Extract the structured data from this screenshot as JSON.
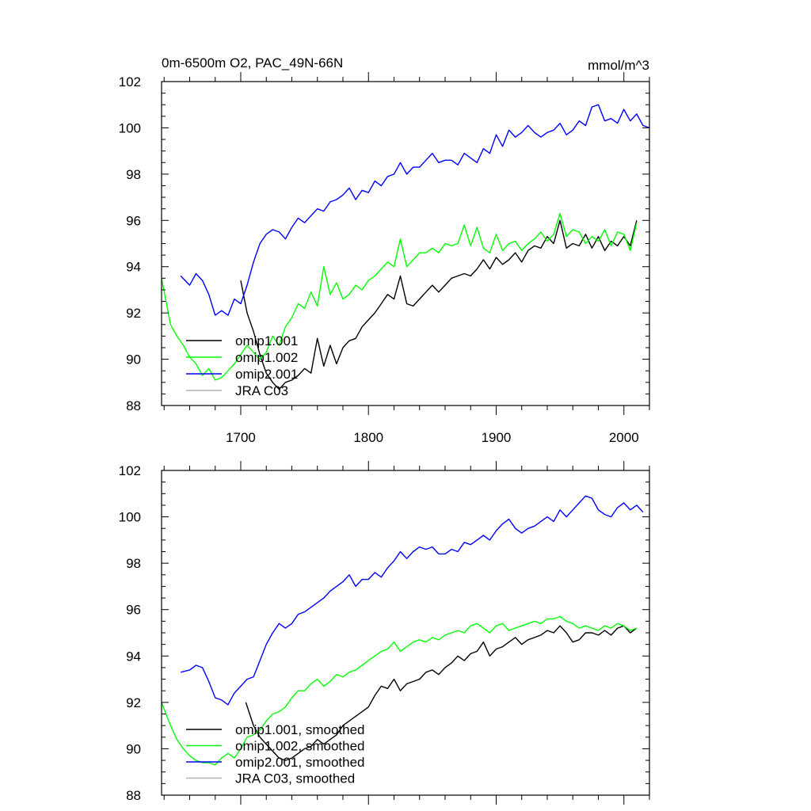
{
  "figure": {
    "title_left": "0m-6500m O2, PAC_49N-66N",
    "title_right": "mmol/m^3"
  },
  "colors": {
    "omip1_001": "#000000",
    "omip1_002": "#00ff00",
    "omip2_001": "#0000ff",
    "jra_c03": "#b3b3b3"
  },
  "chart_data": [
    {
      "type": "line",
      "title": "0m-6500m O2, PAC_49N-66N",
      "units": "mmol/m^3",
      "xlim": [
        1638,
        2020
      ],
      "ylim": [
        88,
        102
      ],
      "xticks": [
        1700,
        1800,
        1900,
        2000
      ],
      "yticks": [
        88,
        90,
        92,
        94,
        96,
        98,
        100,
        102
      ],
      "show_xtick_labels": true,
      "legend_position": "bottom-left",
      "series": [
        {
          "name": "omip1.001",
          "color": "#000000",
          "x": [
            1700,
            1705,
            1710,
            1715,
            1720,
            1725,
            1730,
            1735,
            1740,
            1745,
            1750,
            1755,
            1760,
            1765,
            1770,
            1775,
            1780,
            1785,
            1790,
            1795,
            1800,
            1805,
            1810,
            1815,
            1820,
            1825,
            1830,
            1835,
            1840,
            1845,
            1850,
            1855,
            1860,
            1865,
            1870,
            1875,
            1880,
            1885,
            1890,
            1895,
            1900,
            1905,
            1910,
            1915,
            1920,
            1925,
            1930,
            1935,
            1940,
            1945,
            1950,
            1955,
            1960,
            1965,
            1970,
            1975,
            1980,
            1985,
            1990,
            1995,
            2000,
            2005,
            2010
          ],
          "y": [
            93.4,
            92.0,
            91.2,
            90.2,
            89.4,
            89.0,
            88.7,
            89.0,
            89.1,
            89.3,
            89.6,
            89.4,
            90.9,
            89.7,
            90.6,
            89.8,
            90.5,
            90.8,
            90.9,
            91.4,
            91.7,
            92.0,
            92.4,
            92.8,
            92.6,
            93.6,
            92.4,
            92.3,
            92.6,
            92.9,
            93.2,
            92.9,
            93.2,
            93.5,
            93.6,
            93.7,
            93.6,
            93.9,
            94.3,
            93.9,
            94.4,
            94.1,
            94.3,
            94.6,
            94.2,
            94.7,
            94.9,
            94.8,
            95.3,
            95.0,
            96.0,
            94.8,
            95.0,
            94.9,
            95.4,
            94.8,
            95.3,
            94.7,
            95.1,
            94.9,
            95.3,
            94.9,
            96.0
          ]
        },
        {
          "name": "omip1.002",
          "color": "#00ff00",
          "x": [
            1638,
            1645,
            1650,
            1655,
            1660,
            1665,
            1670,
            1675,
            1680,
            1685,
            1690,
            1695,
            1700,
            1705,
            1710,
            1715,
            1720,
            1725,
            1730,
            1735,
            1740,
            1745,
            1750,
            1755,
            1760,
            1765,
            1770,
            1775,
            1780,
            1785,
            1790,
            1795,
            1800,
            1805,
            1810,
            1815,
            1820,
            1825,
            1830,
            1835,
            1840,
            1845,
            1850,
            1855,
            1860,
            1865,
            1870,
            1875,
            1880,
            1885,
            1890,
            1895,
            1900,
            1905,
            1910,
            1915,
            1920,
            1925,
            1930,
            1935,
            1940,
            1945,
            1950,
            1955,
            1960,
            1965,
            1970,
            1975,
            1980,
            1985,
            1990,
            1995,
            2000,
            2005,
            2010
          ],
          "y": [
            93.5,
            91.5,
            91.0,
            90.6,
            90.1,
            89.8,
            89.3,
            89.6,
            89.1,
            89.2,
            89.5,
            89.8,
            90.2,
            90.6,
            90.3,
            90.0,
            90.3,
            91.0,
            90.6,
            91.4,
            91.8,
            92.4,
            92.2,
            92.9,
            92.3,
            94.0,
            92.8,
            93.3,
            92.6,
            92.8,
            93.2,
            93.0,
            93.4,
            93.6,
            93.9,
            94.2,
            94.0,
            95.2,
            94.0,
            94.3,
            94.6,
            94.6,
            94.8,
            94.6,
            95.0,
            94.9,
            95.0,
            95.8,
            94.9,
            95.7,
            94.8,
            94.6,
            95.4,
            94.7,
            95.0,
            95.1,
            94.7,
            95.0,
            95.2,
            95.5,
            95.1,
            95.4,
            96.3,
            95.3,
            95.6,
            95.5,
            95.0,
            95.3,
            95.1,
            95.6,
            94.9,
            95.5,
            95.4,
            94.7,
            95.9
          ]
        },
        {
          "name": "omip2.001",
          "color": "#0000ff",
          "x": [
            1653,
            1660,
            1665,
            1670,
            1675,
            1680,
            1685,
            1690,
            1695,
            1700,
            1705,
            1710,
            1715,
            1720,
            1725,
            1730,
            1735,
            1740,
            1745,
            1750,
            1755,
            1760,
            1765,
            1770,
            1775,
            1780,
            1785,
            1790,
            1795,
            1800,
            1805,
            1810,
            1815,
            1820,
            1825,
            1830,
            1835,
            1840,
            1845,
            1850,
            1855,
            1860,
            1865,
            1870,
            1875,
            1880,
            1885,
            1890,
            1895,
            1900,
            1905,
            1910,
            1915,
            1920,
            1925,
            1930,
            1935,
            1940,
            1945,
            1950,
            1955,
            1960,
            1965,
            1970,
            1975,
            1980,
            1985,
            1990,
            1995,
            2000,
            2005,
            2010,
            2015,
            2020
          ],
          "y": [
            93.6,
            93.2,
            93.7,
            93.4,
            92.8,
            91.9,
            92.1,
            91.9,
            92.6,
            92.4,
            93.2,
            94.2,
            95.0,
            95.4,
            95.6,
            95.5,
            95.2,
            95.7,
            96.1,
            95.9,
            96.2,
            96.5,
            96.4,
            96.8,
            96.9,
            97.1,
            97.4,
            96.9,
            97.3,
            97.2,
            97.7,
            97.5,
            97.9,
            98.0,
            98.5,
            98.0,
            98.3,
            98.3,
            98.6,
            98.9,
            98.5,
            98.6,
            98.6,
            98.4,
            98.9,
            98.7,
            98.5,
            99.1,
            98.9,
            99.7,
            99.2,
            99.9,
            99.6,
            99.8,
            100.1,
            99.8,
            99.6,
            99.8,
            99.9,
            100.2,
            99.7,
            99.9,
            100.3,
            100.1,
            100.9,
            101.0,
            100.3,
            100.4,
            100.2,
            100.8,
            100.3,
            100.6,
            100.1,
            100.0
          ]
        },
        {
          "name": "JRA C03",
          "color": "#b3b3b3",
          "x": [],
          "y": []
        }
      ]
    },
    {
      "type": "line",
      "title": "",
      "xlim": [
        1638,
        2020
      ],
      "ylim": [
        88,
        102
      ],
      "xticks": [
        1700,
        1800,
        1900,
        2000
      ],
      "yticks": [
        88,
        90,
        92,
        94,
        96,
        98,
        100,
        102
      ],
      "show_xtick_labels": false,
      "legend_position": "bottom-left",
      "series": [
        {
          "name": "omip1.001, smoothed",
          "color": "#000000",
          "x": [
            1704,
            1710,
            1715,
            1720,
            1725,
            1730,
            1735,
            1740,
            1745,
            1750,
            1755,
            1760,
            1765,
            1770,
            1775,
            1780,
            1785,
            1790,
            1795,
            1800,
            1805,
            1810,
            1815,
            1820,
            1825,
            1830,
            1835,
            1840,
            1845,
            1850,
            1855,
            1860,
            1865,
            1870,
            1875,
            1880,
            1885,
            1890,
            1895,
            1900,
            1905,
            1910,
            1915,
            1920,
            1925,
            1930,
            1935,
            1940,
            1945,
            1950,
            1955,
            1960,
            1965,
            1970,
            1975,
            1980,
            1985,
            1990,
            1995,
            2000,
            2005,
            2010
          ],
          "y": [
            92.0,
            91.0,
            90.5,
            90.2,
            89.9,
            89.6,
            89.5,
            89.6,
            89.8,
            90.0,
            90.1,
            90.4,
            90.2,
            90.4,
            90.6,
            91.0,
            91.2,
            91.4,
            91.6,
            91.8,
            92.3,
            92.7,
            92.6,
            93.0,
            92.5,
            92.8,
            92.9,
            93.0,
            93.3,
            93.4,
            93.2,
            93.5,
            93.7,
            94.0,
            93.8,
            94.1,
            94.2,
            94.6,
            94.0,
            94.3,
            94.4,
            94.6,
            94.8,
            94.5,
            94.7,
            94.8,
            94.9,
            95.1,
            95.0,
            95.3,
            95.0,
            94.6,
            94.7,
            95.0,
            95.0,
            94.9,
            95.1,
            94.9,
            95.2,
            95.3,
            95.0,
            95.2
          ]
        },
        {
          "name": "omip1.002, smoothed",
          "color": "#00ff00",
          "x": [
            1638,
            1645,
            1650,
            1655,
            1660,
            1665,
            1670,
            1675,
            1680,
            1685,
            1690,
            1695,
            1700,
            1705,
            1710,
            1715,
            1720,
            1725,
            1730,
            1735,
            1740,
            1745,
            1750,
            1755,
            1760,
            1765,
            1770,
            1775,
            1780,
            1785,
            1790,
            1795,
            1800,
            1805,
            1810,
            1815,
            1820,
            1825,
            1830,
            1835,
            1840,
            1845,
            1850,
            1855,
            1860,
            1865,
            1870,
            1875,
            1880,
            1885,
            1890,
            1895,
            1900,
            1905,
            1910,
            1915,
            1920,
            1925,
            1930,
            1935,
            1940,
            1945,
            1950,
            1955,
            1960,
            1965,
            1970,
            1975,
            1980,
            1985,
            1990,
            1995,
            2000,
            2005,
            2010
          ],
          "y": [
            92.0,
            91.0,
            90.4,
            90.0,
            89.7,
            89.5,
            89.4,
            89.4,
            89.3,
            89.6,
            89.8,
            89.6,
            90.0,
            90.5,
            90.6,
            90.8,
            91.2,
            91.5,
            91.6,
            91.8,
            92.2,
            92.5,
            92.5,
            92.8,
            93.0,
            92.7,
            92.9,
            93.2,
            93.1,
            93.3,
            93.4,
            93.6,
            93.8,
            94.0,
            94.2,
            94.3,
            94.6,
            94.2,
            94.4,
            94.6,
            94.7,
            94.6,
            94.8,
            94.7,
            94.9,
            95.0,
            95.1,
            95.0,
            95.3,
            95.4,
            95.2,
            95.0,
            95.3,
            95.4,
            95.1,
            95.2,
            95.3,
            95.4,
            95.5,
            95.4,
            95.6,
            95.6,
            95.7,
            95.5,
            95.4,
            95.2,
            95.3,
            95.2,
            95.1,
            95.3,
            95.2,
            95.4,
            95.3,
            95.1,
            95.2
          ]
        },
        {
          "name": "omip2.001, smoothed",
          "color": "#0000ff",
          "x": [
            1653,
            1660,
            1665,
            1670,
            1675,
            1680,
            1685,
            1690,
            1695,
            1700,
            1705,
            1710,
            1715,
            1720,
            1725,
            1730,
            1735,
            1740,
            1745,
            1750,
            1755,
            1760,
            1765,
            1770,
            1775,
            1780,
            1785,
            1790,
            1795,
            1800,
            1805,
            1810,
            1815,
            1820,
            1825,
            1830,
            1835,
            1840,
            1845,
            1850,
            1855,
            1860,
            1865,
            1870,
            1875,
            1880,
            1885,
            1890,
            1895,
            1900,
            1905,
            1910,
            1915,
            1920,
            1925,
            1930,
            1935,
            1940,
            1945,
            1950,
            1955,
            1960,
            1965,
            1970,
            1975,
            1980,
            1985,
            1990,
            1995,
            2000,
            2005,
            2010,
            2015
          ],
          "y": [
            93.3,
            93.4,
            93.6,
            93.5,
            92.9,
            92.2,
            92.1,
            91.9,
            92.4,
            92.7,
            93.0,
            93.1,
            93.8,
            94.5,
            95.0,
            95.4,
            95.2,
            95.4,
            95.8,
            95.9,
            96.1,
            96.3,
            96.5,
            96.8,
            97.0,
            97.2,
            97.5,
            97.0,
            97.3,
            97.3,
            97.6,
            97.4,
            97.8,
            98.1,
            98.5,
            98.2,
            98.5,
            98.7,
            98.6,
            98.7,
            98.4,
            98.4,
            98.6,
            98.5,
            98.9,
            98.8,
            99.0,
            99.2,
            99.0,
            99.4,
            99.7,
            99.9,
            99.5,
            99.3,
            99.5,
            99.6,
            99.8,
            100.0,
            99.8,
            100.3,
            100.0,
            100.3,
            100.6,
            100.9,
            100.8,
            100.3,
            100.1,
            100.0,
            100.4,
            100.6,
            100.3,
            100.5,
            100.2
          ]
        },
        {
          "name": "JRA C03, smoothed",
          "color": "#b3b3b3",
          "x": [],
          "y": []
        }
      ]
    }
  ]
}
